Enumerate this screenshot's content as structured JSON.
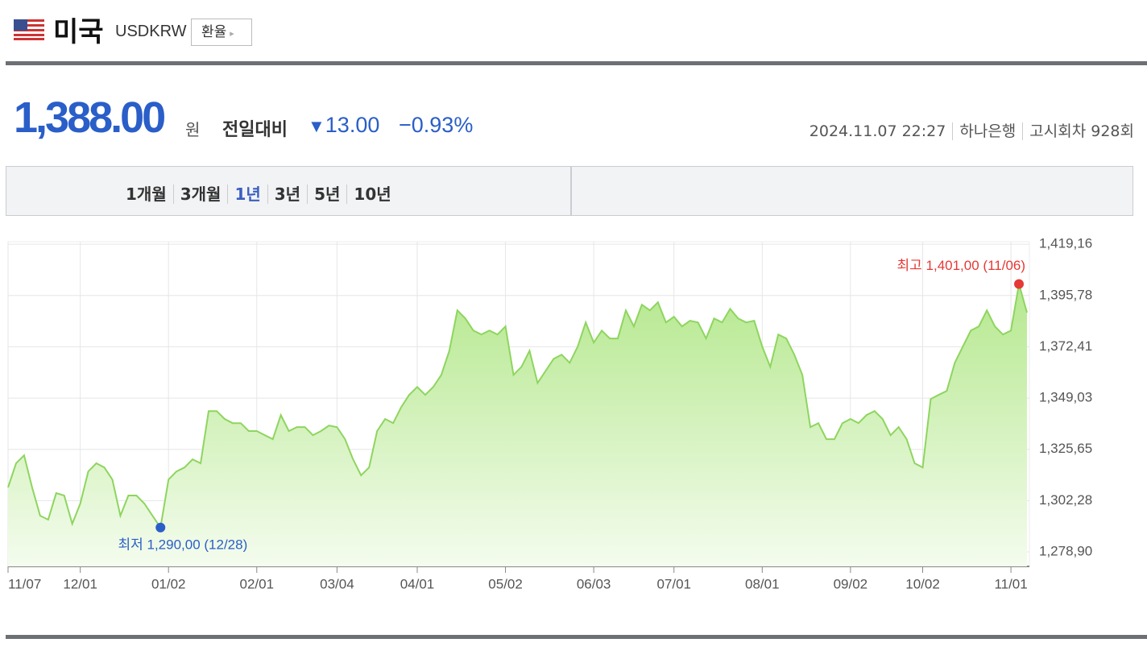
{
  "header": {
    "country": "미국",
    "code": "USDKRW",
    "button": "환율"
  },
  "price": {
    "value": "1,388.00",
    "unit": "원",
    "change_label": "전일대비",
    "change": "13.00",
    "change_pct": "−0.93%",
    "date": "2024.11.07 22:27",
    "bank": "하나은행",
    "round": "고시회차 928회"
  },
  "tabs": [
    "1개월",
    "3개월",
    "1년",
    "3년",
    "5년",
    "10년"
  ],
  "chart_data": {
    "type": "line",
    "color": "#8ed55f",
    "grid": true,
    "annotations": [
      "최고 1,401,00 (11/06)",
      "최저 1,290,00 (12/28)"
    ],
    "categories": [
      "11/07",
      null,
      null,
      null,
      null,
      null,
      null,
      null,
      null,
      "12/01",
      null,
      null,
      null,
      null,
      null,
      null,
      null,
      null,
      null,
      null,
      "01/02",
      null,
      null,
      null,
      null,
      null,
      null,
      null,
      null,
      null,
      null,
      "02/01",
      null,
      null,
      null,
      null,
      null,
      null,
      null,
      null,
      null,
      "03/04",
      null,
      null,
      null,
      null,
      null,
      null,
      null,
      null,
      null,
      "04/01",
      null,
      null,
      null,
      null,
      null,
      null,
      null,
      null,
      null,
      null,
      "05/02",
      null,
      null,
      null,
      null,
      null,
      null,
      null,
      null,
      null,
      null,
      "06/03",
      null,
      null,
      null,
      null,
      null,
      null,
      null,
      null,
      null,
      "07/01",
      null,
      null,
      null,
      null,
      null,
      null,
      null,
      null,
      null,
      null,
      "08/01",
      null,
      null,
      null,
      null,
      null,
      null,
      null,
      null,
      null,
      null,
      "09/02",
      null,
      null,
      null,
      null,
      null,
      null,
      null,
      null,
      "10/02",
      null,
      null,
      null,
      null,
      null,
      null,
      null,
      null,
      null,
      null,
      "11/01",
      null,
      null
    ],
    "values": [
      1308.3,
      1319.3,
      1322.9,
      1308.3,
      1295.4,
      1293.6,
      1305.7,
      1304.6,
      1291.7,
      1300.9,
      1315.6,
      1319.3,
      1317.4,
      1311.9,
      1295.4,
      1304.6,
      1304.6,
      1300.9,
      1295.4,
      1290.0,
      1311.9,
      1315.6,
      1317.4,
      1321.1,
      1319.3,
      1343.1,
      1343.1,
      1339.5,
      1337.6,
      1337.6,
      1334.0,
      1334.0,
      1332.1,
      1330.3,
      1341.3,
      1334.0,
      1335.8,
      1335.8,
      1332.1,
      1334.0,
      1336.5,
      1335.8,
      1330.3,
      1321.1,
      1313.8,
      1317.4,
      1334.0,
      1339.5,
      1337.6,
      1344.9,
      1350.5,
      1354.1,
      1350.5,
      1354.1,
      1359.6,
      1370.6,
      1389.0,
      1385.3,
      1379.8,
      1378.0,
      1379.8,
      1378.0,
      1381.7,
      1359.6,
      1363.3,
      1370.6,
      1355.9,
      1361.4,
      1366.9,
      1368.8,
      1365.1,
      1372.5,
      1383.5,
      1374.3,
      1379.8,
      1376.2,
      1376.2,
      1389.0,
      1381.7,
      1391.6,
      1389.0,
      1392.7,
      1383.5,
      1386.1,
      1381.7,
      1384.3,
      1383.5,
      1376.2,
      1385.3,
      1383.5,
      1389.7,
      1385.3,
      1383.5,
      1384.3,
      1372.5,
      1363.3,
      1378.0,
      1376.2,
      1368.8,
      1359.6,
      1335.8,
      1337.6,
      1330.3,
      1330.3,
      1337.6,
      1339.5,
      1337.6,
      1341.3,
      1343.1,
      1339.5,
      1332.1,
      1335.8,
      1330.3,
      1319.3,
      1317.4,
      1348.6,
      1350.5,
      1352.3,
      1365.1,
      1372.5,
      1379.8,
      1381.7,
      1389.0,
      1381.7,
      1378.0,
      1379.8,
      1401.0,
      1388.0
    ],
    "ylim": [
      1272.3,
      1420.3
    ],
    "yticks": [
      {
        "value": 1419.16,
        "label": "1,419,16"
      },
      {
        "value": 1395.78,
        "label": "1,395,78"
      },
      {
        "value": 1372.41,
        "label": "1,372,41"
      },
      {
        "value": 1349.03,
        "label": "1,349,03"
      },
      {
        "value": 1325.65,
        "label": "1,325,65"
      },
      {
        "value": 1302.28,
        "label": "1,302,28"
      },
      {
        "value": 1278.9,
        "label": "1,278,90"
      }
    ]
  }
}
